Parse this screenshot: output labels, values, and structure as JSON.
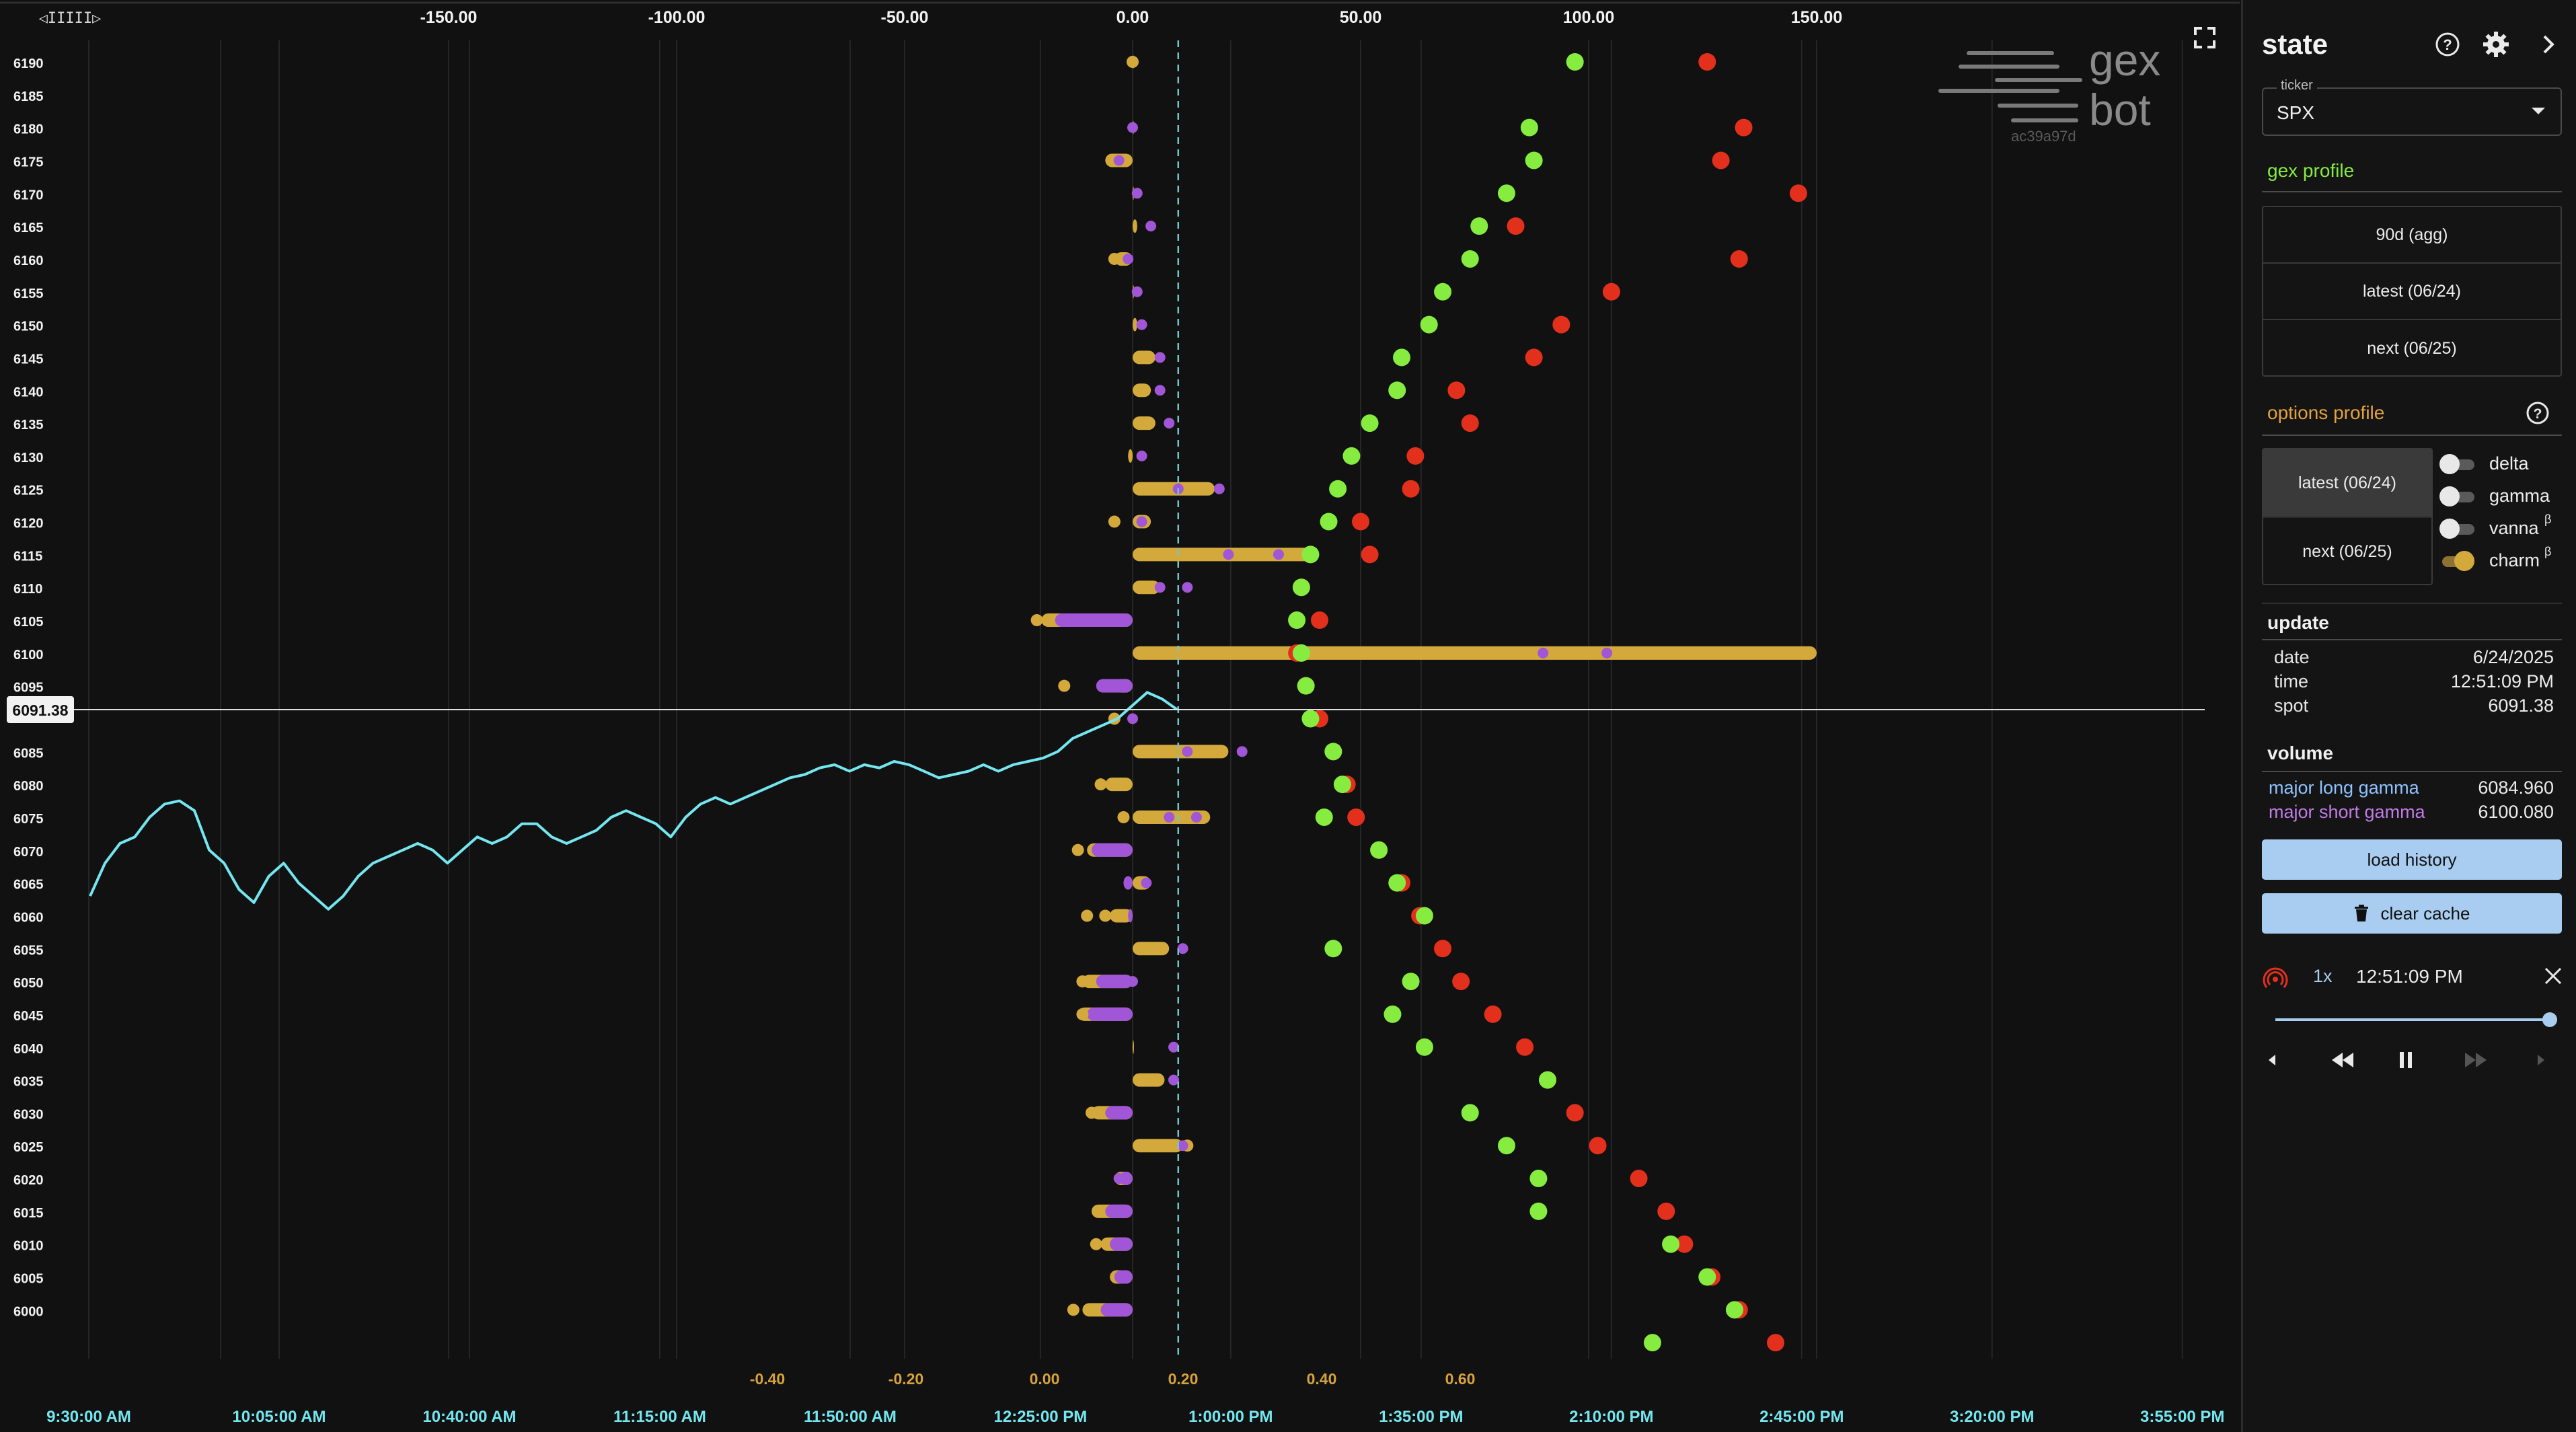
{
  "chart_data": {
    "type": "scatter",
    "strikes": [
      6190,
      6185,
      6180,
      6175,
      6170,
      6165,
      6160,
      6155,
      6150,
      6145,
      6140,
      6135,
      6130,
      6125,
      6120,
      6115,
      6110,
      6105,
      6100,
      6095,
      6085,
      6080,
      6075,
      6070,
      6065,
      6060,
      6055,
      6050,
      6045,
      6040,
      6035,
      6030,
      6025,
      6020,
      6015,
      6010,
      6005,
      6000
    ],
    "top_axis_ticks": [
      "-150.00",
      "-100.00",
      "-50.00",
      "0.00",
      "50.00",
      "100.00",
      "150.00"
    ],
    "bottom_axis_ticks": [
      "-0.40",
      "-0.20",
      "0.00",
      "0.20",
      "0.40",
      "0.60"
    ],
    "time_axis_ticks": [
      "9:30:00 AM",
      "10:05:00 AM",
      "10:40:00 AM",
      "11:15:00 AM",
      "11:50:00 AM",
      "12:25:00 PM",
      "1:00:00 PM",
      "1:35:00 PM",
      "2:10:00 PM",
      "2:45:00 PM",
      "3:20:00 PM",
      "3:55:00 PM"
    ],
    "spot_label": "6091.38",
    "spot_value": 6091.38,
    "dashed_line_value": 10,
    "colors": {
      "charm": "#d4a93c",
      "purple": "#a056d6",
      "green": "#86ec3f",
      "red": "#e3301d",
      "price": "#74e6ef",
      "grid": "#262626",
      "tick": "#f2f2f2",
      "bottom_tick": "#d6a23b",
      "time_tick": "#74e6ef"
    },
    "charm_bars": [
      {
        "strike": 6190,
        "value": 0
      },
      {
        "strike": 6180,
        "value": 0
      },
      {
        "strike": 6175,
        "value": -6
      },
      {
        "strike": 6170,
        "value": 0
      },
      {
        "strike": 6165,
        "value": 1
      },
      {
        "strike": 6160,
        "value": -4
      },
      {
        "strike": 6155,
        "value": 0
      },
      {
        "strike": 6150,
        "value": 1
      },
      {
        "strike": 6145,
        "value": 5
      },
      {
        "strike": 6140,
        "value": 4
      },
      {
        "strike": 6135,
        "value": 5
      },
      {
        "strike": 6130,
        "value": -1
      },
      {
        "strike": 6125,
        "value": 18
      },
      {
        "strike": 6120,
        "value": 4
      },
      {
        "strike": 6115,
        "value": 39
      },
      {
        "strike": 6110,
        "value": 6
      },
      {
        "strike": 6105,
        "value": -20
      },
      {
        "strike": 6100,
        "value": 150
      },
      {
        "strike": 6095,
        "value": -4
      },
      {
        "strike": 6085,
        "value": 21
      },
      {
        "strike": 6080,
        "value": -6
      },
      {
        "strike": 6075,
        "value": 17
      },
      {
        "strike": 6070,
        "value": -10
      },
      {
        "strike": 6065,
        "value": 4
      },
      {
        "strike": 6060,
        "value": -5
      },
      {
        "strike": 6055,
        "value": 8
      },
      {
        "strike": 6050,
        "value": -11
      },
      {
        "strike": 6045,
        "value": -12
      },
      {
        "strike": 6040,
        "value": 0
      },
      {
        "strike": 6035,
        "value": 7
      },
      {
        "strike": 6030,
        "value": -9
      },
      {
        "strike": 6025,
        "value": 11
      },
      {
        "strike": 6020,
        "value": -4
      },
      {
        "strike": 6015,
        "value": -9
      },
      {
        "strike": 6010,
        "value": -7
      },
      {
        "strike": 6005,
        "value": -5
      },
      {
        "strike": 6000,
        "value": -11
      }
    ],
    "purple_bars": [
      {
        "strike": 6105,
        "value": -17
      },
      {
        "strike": 6095,
        "value": -8
      },
      {
        "strike": 6070,
        "value": -9
      },
      {
        "strike": 6050,
        "value": -8
      },
      {
        "strike": 6045,
        "value": -10
      },
      {
        "strike": 6030,
        "value": -6
      },
      {
        "strike": 6020,
        "value": -3
      },
      {
        "strike": 6015,
        "value": -6
      },
      {
        "strike": 6010,
        "value": -5
      },
      {
        "strike": 6005,
        "value": -4
      },
      {
        "strike": 6000,
        "value": -7
      },
      {
        "strike": 6060,
        "value": -1
      },
      {
        "strike": 6065,
        "value": -2
      }
    ],
    "charm_dots": [
      {
        "strike": 6190,
        "value": 0
      },
      {
        "strike": 6175,
        "value": -4
      },
      {
        "strike": 6160,
        "value": -4
      },
      {
        "strike": 6120,
        "value": -4
      },
      {
        "strike": 6105,
        "value": -21
      },
      {
        "strike": 6095,
        "value": -15
      },
      {
        "strike": 6090,
        "value": -4
      },
      {
        "strike": 6080,
        "value": -7
      },
      {
        "strike": 6075,
        "value": -2
      },
      {
        "strike": 6070,
        "value": -12
      },
      {
        "strike": 6060,
        "value": -10
      },
      {
        "strike": 6060,
        "value": -6
      },
      {
        "strike": 6050,
        "value": -11
      },
      {
        "strike": 6045,
        "value": -11
      },
      {
        "strike": 6030,
        "value": -9
      },
      {
        "strike": 6025,
        "value": 12
      },
      {
        "strike": 6010,
        "value": -8
      },
      {
        "strike": 6000,
        "value": -13
      }
    ],
    "purple_dots": [
      {
        "strike": 6180,
        "value": 0
      },
      {
        "strike": 6175,
        "value": -3
      },
      {
        "strike": 6170,
        "value": 1
      },
      {
        "strike": 6165,
        "value": 4
      },
      {
        "strike": 6160,
        "value": -1
      },
      {
        "strike": 6155,
        "value": 1
      },
      {
        "strike": 6150,
        "value": 2
      },
      {
        "strike": 6145,
        "value": 6
      },
      {
        "strike": 6140,
        "value": 6
      },
      {
        "strike": 6135,
        "value": 8
      },
      {
        "strike": 6130,
        "value": 2
      },
      {
        "strike": 6125,
        "value": 19
      },
      {
        "strike": 6125,
        "value": 10
      },
      {
        "strike": 6120,
        "value": 2
      },
      {
        "strike": 6115,
        "value": 21
      },
      {
        "strike": 6115,
        "value": 32
      },
      {
        "strike": 6110,
        "value": 12
      },
      {
        "strike": 6110,
        "value": 6
      },
      {
        "strike": 6100,
        "value": 90
      },
      {
        "strike": 6100,
        "value": 104
      },
      {
        "strike": 6095,
        "value": -2
      },
      {
        "strike": 6090,
        "value": 0
      },
      {
        "strike": 6085,
        "value": 24
      },
      {
        "strike": 6085,
        "value": 12
      },
      {
        "strike": 6075,
        "value": 8
      },
      {
        "strike": 6075,
        "value": 14
      },
      {
        "strike": 6065,
        "value": 3
      },
      {
        "strike": 6055,
        "value": 11
      },
      {
        "strike": 6050,
        "value": 0
      },
      {
        "strike": 6040,
        "value": 9
      },
      {
        "strike": 6035,
        "value": 9
      },
      {
        "strike": 6025,
        "value": 11
      },
      {
        "strike": 6020,
        "value": -3
      },
      {
        "strike": 6015,
        "value": -4
      }
    ],
    "green_dots": [
      {
        "strike": 6190,
        "value": 97
      },
      {
        "strike": 6180,
        "value": 87
      },
      {
        "strike": 6175,
        "value": 88
      },
      {
        "strike": 6170,
        "value": 82
      },
      {
        "strike": 6165,
        "value": 76
      },
      {
        "strike": 6160,
        "value": 74
      },
      {
        "strike": 6155,
        "value": 68
      },
      {
        "strike": 6150,
        "value": 65
      },
      {
        "strike": 6145,
        "value": 59
      },
      {
        "strike": 6140,
        "value": 58
      },
      {
        "strike": 6135,
        "value": 52
      },
      {
        "strike": 6130,
        "value": 48
      },
      {
        "strike": 6125,
        "value": 45
      },
      {
        "strike": 6120,
        "value": 43
      },
      {
        "strike": 6115,
        "value": 39
      },
      {
        "strike": 6110,
        "value": 37
      },
      {
        "strike": 6105,
        "value": 36
      },
      {
        "strike": 6100,
        "value": 37
      },
      {
        "strike": 6095,
        "value": 38
      },
      {
        "strike": 6090,
        "value": 39
      },
      {
        "strike": 6085,
        "value": 44
      },
      {
        "strike": 6080,
        "value": 46
      },
      {
        "strike": 6075,
        "value": 42
      },
      {
        "strike": 6070,
        "value": 54
      },
      {
        "strike": 6065,
        "value": 58
      },
      {
        "strike": 6060,
        "value": 64
      },
      {
        "strike": 6055,
        "value": 44
      },
      {
        "strike": 6050,
        "value": 61
      },
      {
        "strike": 6045,
        "value": 57
      },
      {
        "strike": 6040,
        "value": 64
      },
      {
        "strike": 6035,
        "value": 91
      },
      {
        "strike": 6030,
        "value": 74
      },
      {
        "strike": 6025,
        "value": 82
      },
      {
        "strike": 6020,
        "value": 89
      },
      {
        "strike": 6015,
        "value": 89
      },
      {
        "strike": 6010,
        "value": 118
      },
      {
        "strike": 6005,
        "value": 126
      },
      {
        "strike": 6000,
        "value": 132
      },
      {
        "strike": 5995,
        "value": 114
      }
    ],
    "red_dots": [
      {
        "strike": 6190,
        "value": 126
      },
      {
        "strike": 6180,
        "value": 134
      },
      {
        "strike": 6175,
        "value": 129
      },
      {
        "strike": 6170,
        "value": 146
      },
      {
        "strike": 6165,
        "value": 84
      },
      {
        "strike": 6160,
        "value": 133
      },
      {
        "strike": 6155,
        "value": 105
      },
      {
        "strike": 6150,
        "value": 94
      },
      {
        "strike": 6145,
        "value": 88
      },
      {
        "strike": 6140,
        "value": 71
      },
      {
        "strike": 6135,
        "value": 74
      },
      {
        "strike": 6130,
        "value": 62
      },
      {
        "strike": 6125,
        "value": 61
      },
      {
        "strike": 6120,
        "value": 50
      },
      {
        "strike": 6115,
        "value": 52
      },
      {
        "strike": 6110,
        "value": 37
      },
      {
        "strike": 6105,
        "value": 41
      },
      {
        "strike": 6100,
        "value": 36
      },
      {
        "strike": 6095,
        "value": 38
      },
      {
        "strike": 6090,
        "value": 41
      },
      {
        "strike": 6085,
        "value": 44
      },
      {
        "strike": 6080,
        "value": 47
      },
      {
        "strike": 6075,
        "value": 49
      },
      {
        "strike": 6070,
        "value": 54
      },
      {
        "strike": 6065,
        "value": 59
      },
      {
        "strike": 6060,
        "value": 63
      },
      {
        "strike": 6055,
        "value": 68
      },
      {
        "strike": 6050,
        "value": 72
      },
      {
        "strike": 6045,
        "value": 79
      },
      {
        "strike": 6040,
        "value": 86
      },
      {
        "strike": 6035,
        "value": 91
      },
      {
        "strike": 6030,
        "value": 97
      },
      {
        "strike": 6025,
        "value": 102
      },
      {
        "strike": 6020,
        "value": 111
      },
      {
        "strike": 6015,
        "value": 117
      },
      {
        "strike": 6010,
        "value": 121
      },
      {
        "strike": 6005,
        "value": 127
      },
      {
        "strike": 6000,
        "value": 133
      },
      {
        "strike": 5995,
        "value": 141
      }
    ],
    "price_series": [
      {
        "t": 0,
        "p": 6063
      },
      {
        "t": 3,
        "p": 6068
      },
      {
        "t": 6,
        "p": 6071
      },
      {
        "t": 9,
        "p": 6072
      },
      {
        "t": 12,
        "p": 6075
      },
      {
        "t": 15,
        "p": 6077
      },
      {
        "t": 18,
        "p": 6077.5
      },
      {
        "t": 21,
        "p": 6076
      },
      {
        "t": 24,
        "p": 6070
      },
      {
        "t": 27,
        "p": 6068
      },
      {
        "t": 30,
        "p": 6064
      },
      {
        "t": 33,
        "p": 6062
      },
      {
        "t": 36,
        "p": 6066
      },
      {
        "t": 39,
        "p": 6068
      },
      {
        "t": 42,
        "p": 6065
      },
      {
        "t": 45,
        "p": 6063
      },
      {
        "t": 48,
        "p": 6061
      },
      {
        "t": 51,
        "p": 6063
      },
      {
        "t": 54,
        "p": 6066
      },
      {
        "t": 57,
        "p": 6068
      },
      {
        "t": 60,
        "p": 6069
      },
      {
        "t": 63,
        "p": 6070
      },
      {
        "t": 66,
        "p": 6071
      },
      {
        "t": 69,
        "p": 6070
      },
      {
        "t": 72,
        "p": 6068
      },
      {
        "t": 75,
        "p": 6070
      },
      {
        "t": 78,
        "p": 6072
      },
      {
        "t": 81,
        "p": 6071
      },
      {
        "t": 84,
        "p": 6072
      },
      {
        "t": 87,
        "p": 6074
      },
      {
        "t": 90,
        "p": 6074
      },
      {
        "t": 93,
        "p": 6072
      },
      {
        "t": 96,
        "p": 6071
      },
      {
        "t": 99,
        "p": 6072
      },
      {
        "t": 102,
        "p": 6073
      },
      {
        "t": 105,
        "p": 6075
      },
      {
        "t": 108,
        "p": 6076
      },
      {
        "t": 111,
        "p": 6075
      },
      {
        "t": 114,
        "p": 6074
      },
      {
        "t": 117,
        "p": 6072
      },
      {
        "t": 120,
        "p": 6075
      },
      {
        "t": 123,
        "p": 6077
      },
      {
        "t": 126,
        "p": 6078
      },
      {
        "t": 129,
        "p": 6077
      },
      {
        "t": 132,
        "p": 6078
      },
      {
        "t": 135,
        "p": 6079
      },
      {
        "t": 138,
        "p": 6080
      },
      {
        "t": 141,
        "p": 6081
      },
      {
        "t": 144,
        "p": 6081.5
      },
      {
        "t": 147,
        "p": 6082.5
      },
      {
        "t": 150,
        "p": 6083
      },
      {
        "t": 153,
        "p": 6082
      },
      {
        "t": 156,
        "p": 6083
      },
      {
        "t": 159,
        "p": 6082.5
      },
      {
        "t": 162,
        "p": 6083.5
      },
      {
        "t": 165,
        "p": 6083
      },
      {
        "t": 168,
        "p": 6082
      },
      {
        "t": 171,
        "p": 6081
      },
      {
        "t": 174,
        "p": 6081.5
      },
      {
        "t": 177,
        "p": 6082
      },
      {
        "t": 180,
        "p": 6083
      },
      {
        "t": 183,
        "p": 6082
      },
      {
        "t": 186,
        "p": 6083
      },
      {
        "t": 189,
        "p": 6083.5
      },
      {
        "t": 192,
        "p": 6084
      },
      {
        "t": 195,
        "p": 6085
      },
      {
        "t": 198,
        "p": 6087
      },
      {
        "t": 201,
        "p": 6088
      },
      {
        "t": 204,
        "p": 6089
      },
      {
        "t": 207,
        "p": 6090
      },
      {
        "t": 210,
        "p": 6092
      },
      {
        "t": 213,
        "p": 6094
      },
      {
        "t": 216,
        "p": 6093
      },
      {
        "t": 219,
        "p": 6091.4
      }
    ],
    "price_time_range": [
      0,
      219
    ],
    "time_axis_range_minutes": [
      0,
      385
    ]
  },
  "logo": {
    "line1": "gex",
    "line2": "bot",
    "build": "ac39a97d"
  },
  "scroll_handle": "◁IIIII▷",
  "sidebar": {
    "title": "state",
    "ticker_label": "ticker",
    "ticker_value": "SPX",
    "gex_profile_title": "gex profile",
    "gex_buttons": [
      "90d (agg)",
      "latest (06/24)",
      "next (06/25)"
    ],
    "options_profile_title": "options profile",
    "options_buttons": [
      "latest (06/24)",
      "next (06/25)"
    ],
    "toggles": [
      {
        "label": "delta",
        "sup": "",
        "on": false
      },
      {
        "label": "gamma",
        "sup": "",
        "on": false
      },
      {
        "label": "vanna",
        "sup": "β",
        "on": false
      },
      {
        "label": "charm",
        "sup": "β",
        "on": true
      }
    ],
    "update_title": "update",
    "update_rows": [
      {
        "key": "date",
        "value": "6/24/2025"
      },
      {
        "key": "time",
        "value": "12:51:09 PM"
      },
      {
        "key": "spot",
        "value": "6091.38"
      }
    ],
    "volume_title": "volume",
    "volume_rows": [
      {
        "key": "major long gamma",
        "value": "6084.960"
      },
      {
        "key": "major short gamma",
        "value": "6100.080"
      }
    ],
    "load_history_label": "load history",
    "clear_cache_label": "clear cache",
    "player": {
      "speed": "1x",
      "time": "12:51:09 PM",
      "progress": 0.99
    },
    "colors": {
      "gex_title": "#86ec3f",
      "options_title": "#e4a33b",
      "long_gamma": "#8fc3ff",
      "short_gamma": "#c07be6",
      "button_bg": "#a9cdf0"
    }
  }
}
